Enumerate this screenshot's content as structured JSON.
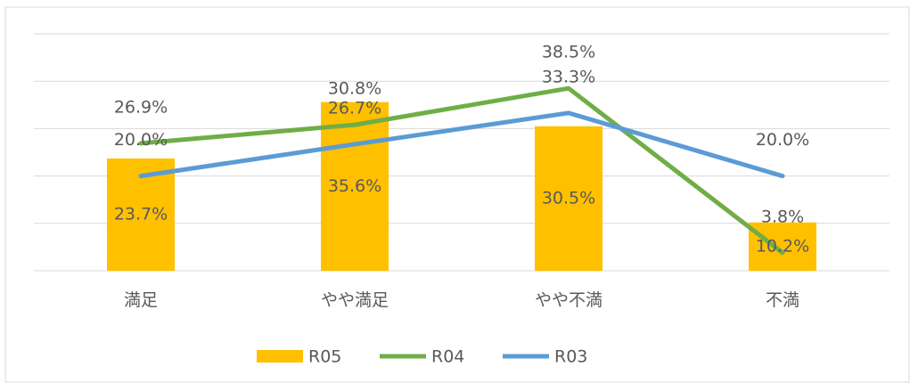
{
  "chart_data": {
    "type": "bar-line",
    "categories": [
      "満足",
      "やや満足",
      "やや不満",
      "不満"
    ],
    "series": [
      {
        "name": "R05",
        "type": "bar",
        "color": "#ffc000",
        "values": [
          23.7,
          35.6,
          30.5,
          10.2
        ],
        "value_labels": [
          "23.7%",
          "35.6%",
          "30.5%",
          "10.2%"
        ]
      },
      {
        "name": "R04",
        "type": "line",
        "color": "#70ad47",
        "values": [
          26.9,
          30.8,
          38.5,
          3.8
        ],
        "value_labels": [
          "26.9%",
          "30.8%",
          "38.5%",
          "3.8%"
        ]
      },
      {
        "name": "R03",
        "type": "line",
        "color": "#5b9bd5",
        "values": [
          20.0,
          26.7,
          33.3,
          20.0
        ],
        "value_labels": [
          "20.0%",
          "26.7%",
          "33.3%",
          "20.0%"
        ]
      }
    ],
    "ylim": [
      0,
      50
    ],
    "yticks": [
      0,
      10,
      20,
      30,
      40,
      50
    ],
    "grid": true,
    "legend": "bottom"
  }
}
